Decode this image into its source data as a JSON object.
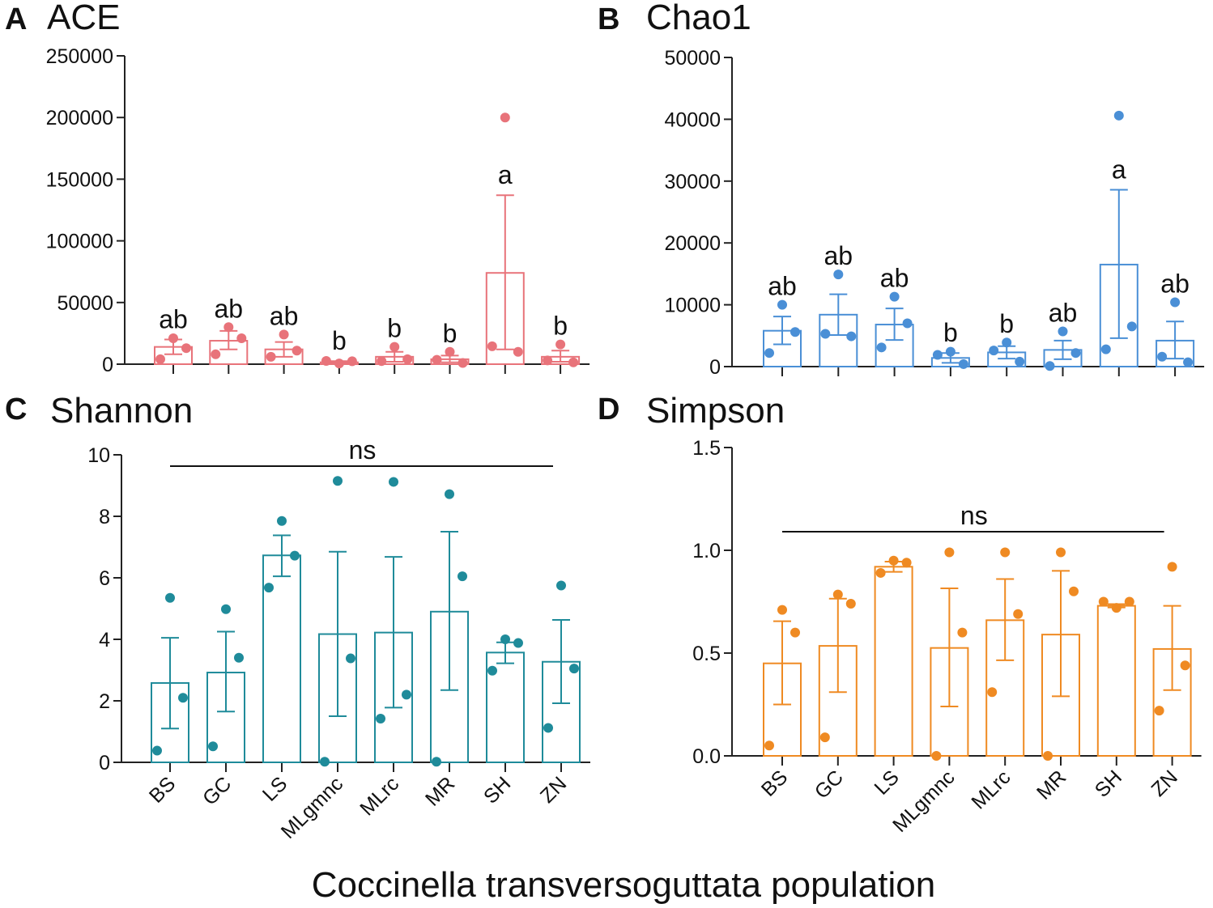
{
  "figure": {
    "xlabel": "Coccinella transversoguttata population",
    "categories": [
      "BS",
      "GC",
      "LS",
      "MLgmnc",
      "MLrc",
      "MR",
      "SH",
      "ZN"
    ]
  },
  "chart_data": [
    {
      "type": "bar",
      "panel": "A",
      "title": "ACE",
      "color": "#e8737a",
      "categories": [
        "BS",
        "GC",
        "LS",
        "MLgmnc",
        "MLrc",
        "MR",
        "SH",
        "ZN"
      ],
      "values": [
        14000,
        19000,
        12000,
        1500,
        6000,
        4000,
        74000,
        6000
      ],
      "err_low": [
        8000,
        12000,
        6000,
        600,
        2000,
        1500,
        12000,
        2000
      ],
      "err_high": [
        20000,
        27000,
        18000,
        2500,
        10000,
        7000,
        137000,
        11000
      ],
      "points": [
        [
          21000,
          13000,
          4000
        ],
        [
          30000,
          21000,
          8000
        ],
        [
          24000,
          11000,
          6000
        ],
        [
          600,
          2400,
          2600
        ],
        [
          14000,
          4000,
          2500
        ],
        [
          10000,
          1000,
          3500
        ],
        [
          200000,
          10000,
          14500
        ],
        [
          16000,
          1500,
          3000
        ]
      ],
      "letters": [
        "ab",
        "ab",
        "ab",
        "b",
        "b",
        "b",
        "a",
        "b"
      ],
      "ylim": [
        0,
        250000
      ],
      "yticks": [
        0,
        50000,
        100000,
        150000,
        200000,
        250000
      ],
      "ytick_labels": [
        "0",
        "50000",
        "100000",
        "150000",
        "200000",
        "250000"
      ],
      "show_xticklabels": false
    },
    {
      "type": "bar",
      "panel": "B",
      "title": "Chao1",
      "color": "#4a8fd6",
      "categories": [
        "BS",
        "GC",
        "LS",
        "MLgmnc",
        "MLrc",
        "MR",
        "SH",
        "ZN"
      ],
      "values": [
        5800,
        8400,
        6800,
        1400,
        2300,
        2700,
        16500,
        4200
      ],
      "err_low": [
        3600,
        5100,
        4300,
        600,
        1300,
        1200,
        4600,
        1300
      ],
      "err_high": [
        8100,
        11700,
        9400,
        2200,
        3300,
        4200,
        28600,
        7300
      ],
      "points": [
        [
          10000,
          5600,
          2200
        ],
        [
          14900,
          4900,
          5300
        ],
        [
          11300,
          7000,
          3100
        ],
        [
          2400,
          400,
          1900
        ],
        [
          3900,
          800,
          2600
        ],
        [
          5700,
          2200,
          100
        ],
        [
          40600,
          6500,
          2800
        ],
        [
          10400,
          700,
          1600
        ]
      ],
      "letters": [
        "ab",
        "ab",
        "ab",
        "b",
        "b",
        "ab",
        "a",
        "ab"
      ],
      "ylim": [
        0,
        50000
      ],
      "yticks": [
        0,
        10000,
        20000,
        30000,
        40000,
        50000
      ],
      "ytick_labels": [
        "0",
        "10000",
        "20000",
        "30000",
        "40000",
        "50000"
      ],
      "show_xticklabels": false
    },
    {
      "type": "bar",
      "panel": "C",
      "title": "Shannon",
      "color": "#1f8b9a",
      "categories": [
        "BS",
        "GC",
        "LS",
        "MLgmnc",
        "MLrc",
        "MR",
        "SH",
        "ZN"
      ],
      "values": [
        2.58,
        2.92,
        6.73,
        4.17,
        4.22,
        4.9,
        3.57,
        3.27
      ],
      "err_low": [
        1.1,
        1.65,
        6.05,
        1.5,
        1.78,
        2.35,
        3.22,
        1.92
      ],
      "err_high": [
        4.05,
        4.25,
        7.38,
        6.85,
        6.68,
        7.5,
        3.9,
        4.63
      ],
      "points": [
        [
          5.35,
          2.1,
          0.38
        ],
        [
          4.98,
          3.4,
          0.52
        ],
        [
          7.85,
          6.72,
          5.68
        ],
        [
          9.15,
          3.38,
          0.02
        ],
        [
          9.12,
          2.2,
          1.42
        ],
        [
          8.72,
          6.05,
          0.02
        ],
        [
          4.0,
          3.88,
          2.98
        ],
        [
          5.75,
          3.05,
          1.12
        ]
      ],
      "ns_label": "ns",
      "ylim": [
        0,
        10
      ],
      "yticks": [
        0,
        2,
        4,
        6,
        8,
        10
      ],
      "ytick_labels": [
        "0",
        "2",
        "4",
        "6",
        "8",
        "10"
      ],
      "show_xticklabels": true
    },
    {
      "type": "bar",
      "panel": "D",
      "title": "Simpson",
      "color": "#ef8a22",
      "categories": [
        "BS",
        "GC",
        "LS",
        "MLgmnc",
        "MLrc",
        "MR",
        "SH",
        "ZN"
      ],
      "values": [
        0.45,
        0.535,
        0.92,
        0.525,
        0.66,
        0.59,
        0.73,
        0.52
      ],
      "err_low": [
        0.25,
        0.31,
        0.895,
        0.24,
        0.465,
        0.29,
        0.722,
        0.32
      ],
      "err_high": [
        0.655,
        0.765,
        0.945,
        0.815,
        0.86,
        0.9,
        0.738,
        0.73
      ],
      "points": [
        [
          0.71,
          0.6,
          0.05
        ],
        [
          0.785,
          0.74,
          0.09
        ],
        [
          0.95,
          0.94,
          0.89
        ],
        [
          0.99,
          0.6,
          0.0
        ],
        [
          0.99,
          0.69,
          0.31
        ],
        [
          0.99,
          0.8,
          0.0
        ],
        [
          0.72,
          0.75,
          0.75
        ],
        [
          0.92,
          0.44,
          0.22
        ]
      ],
      "ns_label": "ns",
      "ylim": [
        0,
        1.5
      ],
      "yticks": [
        0,
        0.5,
        1.0,
        1.5
      ],
      "ytick_labels": [
        "0.0",
        "0.5",
        "1.0",
        "1.5"
      ],
      "show_xticklabels": true
    }
  ]
}
